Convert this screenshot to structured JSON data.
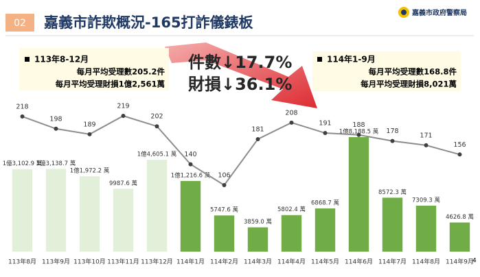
{
  "header": {
    "number": "02",
    "title": "嘉義市詐欺概況-165打詐儀錶板",
    "org": "嘉義市政府警察局",
    "page": "4"
  },
  "summary_left": {
    "period": "113年8-12月",
    "cases": "每月平均受理數205.2件",
    "loss": "每月平均受理財損1億2,561萬"
  },
  "summary_right": {
    "period": "114年1-9月",
    "cases": "每月平均受理數168.8件",
    "loss": "每月平均受理財損8,021萬"
  },
  "highlight": {
    "cases": "件數↓17.7%",
    "loss": "財損↓36.1%"
  },
  "chart_data": {
    "type": "combo",
    "categories": [
      "113年8月",
      "113年9月",
      "113年10月",
      "113年11月",
      "113年12月",
      "114年1月",
      "114年2月",
      "114年3月",
      "114年4月",
      "114年5月",
      "114年6月",
      "114年7月",
      "114年8月",
      "114年9月"
    ],
    "series": [
      {
        "type": "bar",
        "values": [
          13102.9,
          13138.7,
          11972.2,
          9987.6,
          14605.1,
          11216.6,
          5747.6,
          3859.0,
          5802.4,
          6868.7,
          18188.5,
          8572.3,
          7309.3,
          4626.8
        ],
        "value_labels": [
          "1億3,102.9 萬",
          "1億3,138.7 萬",
          "1億1,972.2 萬",
          "9987.6 萬",
          "1億4,605.1 萬",
          "1億1,216.6 萬",
          "5747.6 萬",
          "3859.0 萬",
          "5802.4 萬",
          "6868.7 萬",
          "1億8,188.5 萬",
          "8572.3 萬",
          "7309.3 萬",
          "4626.8 萬"
        ],
        "colors": [
          "#e2efd9",
          "#e2efd9",
          "#e2efd9",
          "#e2efd9",
          "#e2efd9",
          "#70ad47",
          "#70ad47",
          "#70ad47",
          "#70ad47",
          "#70ad47",
          "#70ad47",
          "#70ad47",
          "#70ad47",
          "#70ad47"
        ]
      },
      {
        "type": "line",
        "color": "#8c8c8c",
        "values": [
          218,
          198,
          189,
          219,
          202,
          140,
          106,
          181,
          208,
          191,
          188,
          178,
          171,
          156
        ]
      }
    ]
  }
}
